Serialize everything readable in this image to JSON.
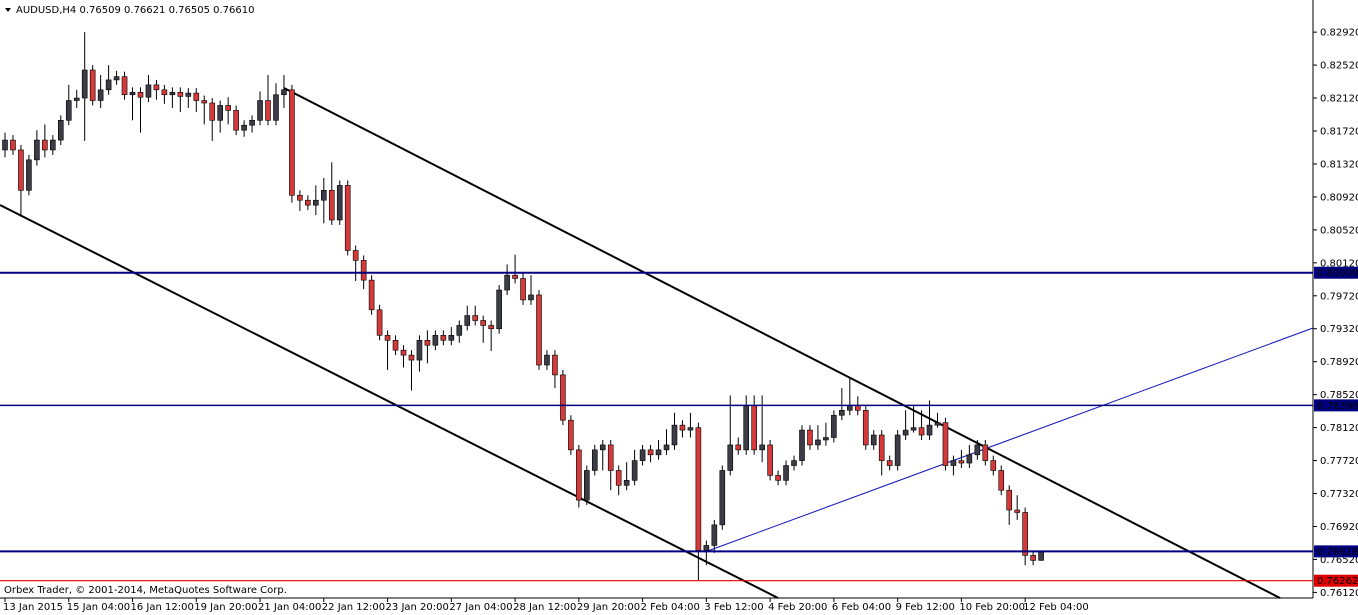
{
  "chart_data": {
    "type": "candlestick",
    "symbol": "AUDUSD,H4",
    "header_values": [
      0.76509,
      0.76621,
      0.76505,
      {
        "value": 0.7661,
        "label": "0.76610"
      }
    ],
    "copyright": "Orbex Trader, © 2001-2014, MetaQuotes Software Corp.",
    "up_color": "#3c3c46",
    "down_color": "#d43a3a",
    "categories": [
      "13 Jan 2015",
      null,
      null,
      null,
      null,
      null,
      null,
      null,
      "15 Jan 04:00",
      null,
      null,
      null,
      null,
      null,
      null,
      null,
      "16 Jan 12:00",
      null,
      null,
      null,
      null,
      null,
      null,
      null,
      "19 Jan 20:00",
      null,
      null,
      null,
      null,
      null,
      null,
      null,
      "21 Jan 04:00",
      null,
      null,
      null,
      null,
      null,
      null,
      null,
      "22 Jan 12:00",
      null,
      null,
      null,
      null,
      null,
      null,
      null,
      "23 Jan 20:00",
      null,
      null,
      null,
      null,
      null,
      null,
      null,
      "27 Jan 04:00",
      null,
      null,
      null,
      null,
      null,
      null,
      null,
      "28 Jan 12:00",
      null,
      null,
      null,
      null,
      null,
      null,
      null,
      "29 Jan 20:00",
      null,
      null,
      null,
      null,
      null,
      null,
      null,
      "2 Feb 04:00",
      null,
      null,
      null,
      null,
      null,
      null,
      null,
      "3 Feb 12:00",
      null,
      null,
      null,
      null,
      null,
      null,
      null,
      "4 Feb 20:00",
      null,
      null,
      null,
      null,
      null,
      null,
      null,
      "6 Feb 04:00",
      null,
      null,
      null,
      null,
      null,
      null,
      null,
      "9 Feb 12:00",
      null,
      null,
      null,
      null,
      null,
      null,
      null,
      "10 Feb 20:00",
      null,
      null,
      null,
      null,
      null,
      null,
      null,
      "12 Feb 04:00",
      null,
      null
    ],
    "open": [
      0.8149,
      0.8161,
      0.8149,
      0.81,
      0.8137,
      0.8161,
      0.8149,
      0.8161,
      0.8185,
      0.8209,
      0.8212,
      0.8246,
      0.8209,
      0.8222,
      0.8234,
      0.8238,
      0.8216,
      0.8219,
      0.8213,
      0.8228,
      0.8222,
      0.8216,
      0.8219,
      0.8214,
      0.8218,
      0.8209,
      0.8206,
      0.8185,
      0.8203,
      0.8197,
      0.8173,
      0.8179,
      0.8185,
      0.8209,
      0.8185,
      0.8216,
      0.8222,
      0.8094,
      0.8088,
      0.8082,
      0.8088,
      0.81,
      0.8064,
      0.8106,
      0.8027,
      0.8015,
      0.7991,
      0.7955,
      0.7924,
      0.7918,
      0.7906,
      0.79,
      0.7894,
      0.7918,
      0.7912,
      0.7924,
      0.7918,
      0.7924,
      0.7936,
      0.7948,
      0.7942,
      0.7936,
      0.7932,
      0.7979,
      0.7997,
      0.7993,
      0.7967,
      0.7973,
      0.7888,
      0.79,
      0.7876,
      0.7821,
      0.7785,
      0.7724,
      0.776,
      0.7785,
      0.7791,
      0.776,
      0.7742,
      0.7748,
      0.7772,
      0.7785,
      0.7779,
      0.7785,
      0.7791,
      0.7815,
      0.7809,
      0.7812,
      0.7663,
      0.7669,
      0.7694,
      0.776,
      0.7791,
      0.7785,
      0.7839,
      0.7785,
      0.7791,
      0.7754,
      0.7748,
      0.7766,
      0.7772,
      0.7809,
      0.7791,
      0.7797,
      0.78,
      0.7827,
      0.7833,
      0.7839,
      0.7833,
      0.7791,
      0.7803,
      0.7772,
      0.7766,
      0.7803,
      0.7809,
      0.7812,
      0.7803,
      0.7815,
      0.7818,
      0.7766,
      0.7772,
      0.7769,
      0.7779,
      0.7791,
      0.7772,
      0.776,
      0.7736,
      0.7712,
      0.7709,
      0.7657,
      0.76509
    ],
    "high": [
      0.817,
      0.8167,
      0.8155,
      0.8143,
      0.8173,
      0.818,
      0.8167,
      0.8191,
      0.8228,
      0.8222,
      0.8292,
      0.8252,
      0.824,
      0.8252,
      0.8245,
      0.8244,
      0.8225,
      0.8225,
      0.824,
      0.8234,
      0.8228,
      0.8225,
      0.8225,
      0.8224,
      0.8224,
      0.8215,
      0.8212,
      0.8209,
      0.8213,
      0.8203,
      0.8185,
      0.8191,
      0.822,
      0.824,
      0.823,
      0.824,
      0.8228,
      0.81,
      0.8094,
      0.8106,
      0.8115,
      0.8134,
      0.8112,
      0.8112,
      0.8033,
      0.8021,
      0.7997,
      0.7961,
      0.793,
      0.7924,
      0.7912,
      0.7906,
      0.7924,
      0.793,
      0.793,
      0.793,
      0.7934,
      0.7942,
      0.796,
      0.796,
      0.7948,
      0.7942,
      0.7985,
      0.801,
      0.8022,
      0.8,
      0.7997,
      0.7979,
      0.7906,
      0.7906,
      0.7882,
      0.7827,
      0.7791,
      0.7766,
      0.7791,
      0.7797,
      0.7797,
      0.7766,
      0.777,
      0.7785,
      0.7791,
      0.7791,
      0.7797,
      0.781,
      0.783,
      0.7821,
      0.783,
      0.7818,
      0.7675,
      0.77,
      0.7766,
      0.7851,
      0.78,
      0.7851,
      0.7851,
      0.7851,
      0.7797,
      0.776,
      0.7772,
      0.7778,
      0.7815,
      0.7815,
      0.7815,
      0.7818,
      0.7833,
      0.786,
      0.7873,
      0.785,
      0.7839,
      0.7809,
      0.7809,
      0.7778,
      0.7809,
      0.7833,
      0.7839,
      0.7833,
      0.7845,
      0.783,
      0.7824,
      0.7778,
      0.7785,
      0.7791,
      0.7797,
      0.7797,
      0.7778,
      0.7766,
      0.7742,
      0.773,
      0.7715,
      0.7663,
      0.76621
    ],
    "low": [
      0.814,
      0.8143,
      0.807,
      0.8094,
      0.813,
      0.814,
      0.8143,
      0.8155,
      0.8179,
      0.82,
      0.816,
      0.8203,
      0.82,
      0.8216,
      0.8228,
      0.821,
      0.8185,
      0.817,
      0.8207,
      0.821,
      0.8205,
      0.82,
      0.8195,
      0.82,
      0.8195,
      0.818,
      0.816,
      0.817,
      0.818,
      0.8167,
      0.8165,
      0.817,
      0.8179,
      0.8179,
      0.8179,
      0.82,
      0.8085,
      0.8075,
      0.8076,
      0.807,
      0.806,
      0.8058,
      0.8058,
      0.8021,
      0.799,
      0.798,
      0.7949,
      0.7918,
      0.7882,
      0.79,
      0.7885,
      0.7857,
      0.788,
      0.789,
      0.7906,
      0.7912,
      0.7912,
      0.7915,
      0.793,
      0.7936,
      0.7915,
      0.7905,
      0.7926,
      0.7973,
      0.7987,
      0.7961,
      0.7961,
      0.7882,
      0.7882,
      0.786,
      0.7815,
      0.7779,
      0.7715,
      0.7718,
      0.7754,
      0.776,
      0.7736,
      0.773,
      0.7736,
      0.7742,
      0.7766,
      0.777,
      0.7773,
      0.7779,
      0.7785,
      0.78,
      0.78,
      0.7627,
      0.7645,
      0.766,
      0.7688,
      0.7754,
      0.7779,
      0.7779,
      0.7779,
      0.777,
      0.7748,
      0.7742,
      0.7742,
      0.776,
      0.7766,
      0.7785,
      0.7785,
      0.779,
      0.7794,
      0.7821,
      0.7827,
      0.7827,
      0.7785,
      0.7785,
      0.7754,
      0.776,
      0.776,
      0.7797,
      0.7806,
      0.7797,
      0.7797,
      0.7812,
      0.776,
      0.7754,
      0.7763,
      0.7763,
      0.7773,
      0.7766,
      0.7754,
      0.773,
      0.7694,
      0.77,
      0.7645,
      0.7645,
      0.76505
    ],
    "close": [
      0.8161,
      0.8149,
      0.81,
      0.8137,
      0.8161,
      0.8149,
      0.8161,
      0.8185,
      0.8209,
      0.8212,
      0.8246,
      0.8209,
      0.8222,
      0.8234,
      0.8238,
      0.8216,
      0.8219,
      0.8213,
      0.8228,
      0.8222,
      0.8216,
      0.8219,
      0.8214,
      0.8218,
      0.8209,
      0.8206,
      0.8185,
      0.8203,
      0.8197,
      0.8173,
      0.8179,
      0.8185,
      0.8209,
      0.8185,
      0.8216,
      0.8222,
      0.8094,
      0.8088,
      0.8082,
      0.8088,
      0.81,
      0.8064,
      0.8106,
      0.8027,
      0.8015,
      0.7991,
      0.7955,
      0.7924,
      0.7918,
      0.7906,
      0.79,
      0.7894,
      0.7918,
      0.7912,
      0.7924,
      0.7918,
      0.7924,
      0.7936,
      0.7948,
      0.7942,
      0.7936,
      0.7932,
      0.7979,
      0.7997,
      0.7993,
      0.7967,
      0.7973,
      0.7888,
      0.79,
      0.7876,
      0.7821,
      0.7785,
      0.7724,
      0.776,
      0.7785,
      0.7791,
      0.776,
      0.7742,
      0.7748,
      0.7772,
      0.7785,
      0.7779,
      0.7785,
      0.7791,
      0.7815,
      0.7809,
      0.7812,
      0.7663,
      0.7669,
      0.7694,
      0.776,
      0.7791,
      0.7785,
      0.7839,
      0.7785,
      0.7791,
      0.7754,
      0.7748,
      0.7766,
      0.7772,
      0.7809,
      0.7791,
      0.7797,
      0.78,
      0.7827,
      0.7833,
      0.7839,
      0.7833,
      0.7791,
      0.7803,
      0.7772,
      0.7766,
      0.7803,
      0.7809,
      0.7812,
      0.7803,
      0.7815,
      0.7818,
      0.7766,
      0.7772,
      0.7769,
      0.7779,
      0.7791,
      0.7772,
      0.776,
      0.7736,
      0.7712,
      0.7709,
      0.7657,
      0.76509,
      0.7661
    ],
    "ylim": [
      0.7604,
      0.8331
    ],
    "yticks": [
      {
        "value": 0.8292,
        "label": "0.82920"
      },
      {
        "value": 0.8252,
        "label": "0.82520"
      },
      {
        "value": 0.8212,
        "label": "0.82120"
      },
      {
        "value": 0.8172,
        "label": "0.81720"
      },
      {
        "value": 0.8132,
        "label": "0.81320"
      },
      {
        "value": 0.8092,
        "label": "0.80920"
      },
      {
        "value": 0.8052,
        "label": "0.80520"
      },
      {
        "value": 0.8012,
        "label": "0.80120"
      },
      {
        "value": 0.7972,
        "label": "0.79720"
      },
      {
        "value": 0.7932,
        "label": "0.79320"
      },
      {
        "value": 0.7892,
        "label": "0.78920"
      },
      {
        "value": 0.7852,
        "label": "0.78520"
      },
      {
        "value": 0.7812,
        "label": "0.78120"
      },
      {
        "value": 0.7772,
        "label": "0.77720"
      },
      {
        "value": 0.7732,
        "label": "0.77320"
      },
      {
        "value": 0.7692,
        "label": "0.76920"
      },
      {
        "value": 0.7652,
        "label": "0.76520"
      },
      {
        "value": 0.7612,
        "label": "0.76120"
      }
    ],
    "levels": [
      {
        "value": 0.8,
        "label": "0.80000",
        "color": "#000080",
        "width": 2
      },
      {
        "value": 0.7839,
        "label": "0.78390",
        "color": "#000080",
        "width": 1.5
      },
      {
        "value": 0.76618,
        "label": "0.76618",
        "color": "#000080",
        "width": 2
      },
      {
        "value": 0.76262,
        "label": "0.76262",
        "color": "#e00000",
        "width": 1.2
      }
    ],
    "grid": false
  }
}
